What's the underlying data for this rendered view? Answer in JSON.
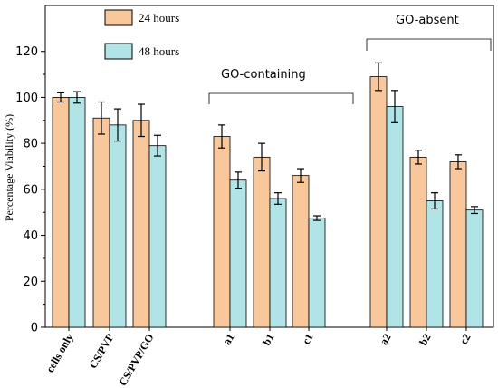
{
  "chart_data": {
    "type": "bar",
    "categories": [
      "cells only",
      "CS/PVP",
      "CS/PVP/GO",
      "a1",
      "b1",
      "c1",
      "a2",
      "b2",
      "c2"
    ],
    "series": [
      {
        "name": "24 hours",
        "color": "#f9c79c",
        "values": [
          100,
          91,
          90,
          83,
          74,
          66,
          109,
          74,
          72
        ],
        "errors": [
          2,
          7,
          7,
          5,
          6,
          3,
          6,
          3,
          3
        ]
      },
      {
        "name": "48 hours",
        "color": "#b0e4e6",
        "values": [
          100,
          88,
          79,
          64,
          56,
          47.5,
          96,
          55,
          51
        ],
        "errors": [
          2.5,
          7,
          4.5,
          3.5,
          2.5,
          1,
          7,
          3.5,
          1.5
        ]
      }
    ],
    "ylabel": "Percentage Viability (%)",
    "xlabel": "",
    "ylim": [
      0,
      140
    ],
    "yticks": [
      0,
      20,
      40,
      60,
      80,
      100,
      120
    ],
    "legend_position": "top-left",
    "grid": false,
    "annotations": [
      {
        "text": "GO-containing",
        "bracket_over": [
          "a1",
          "c1"
        ]
      },
      {
        "text": "GO-absent",
        "bracket_over": [
          "a2",
          "c2"
        ]
      }
    ]
  }
}
